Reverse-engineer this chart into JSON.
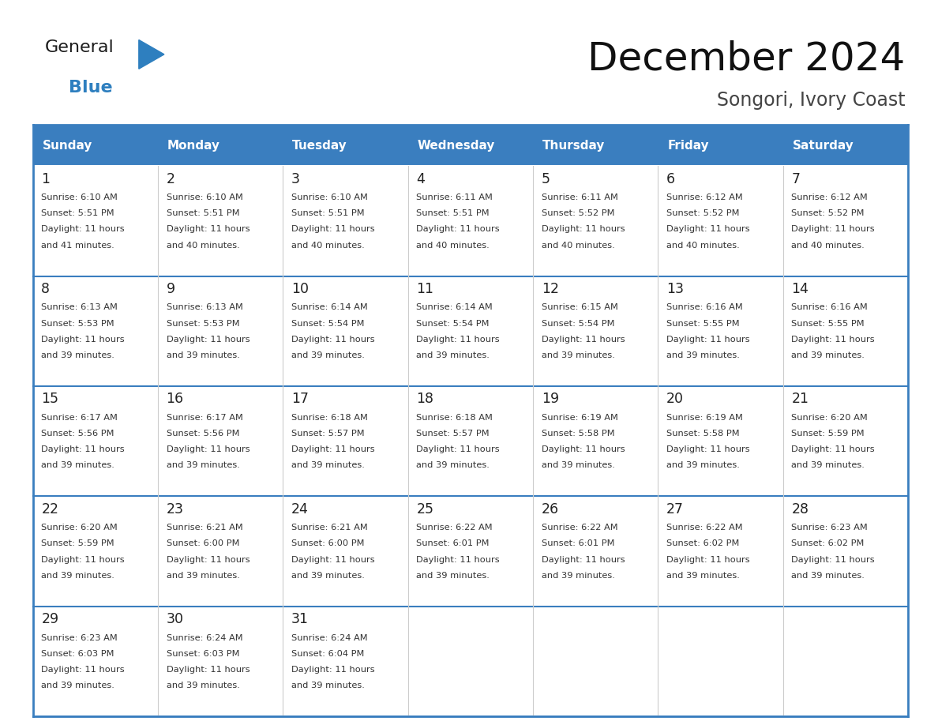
{
  "title": "December 2024",
  "subtitle": "Songori, Ivory Coast",
  "header_bg": "#3A7EBF",
  "header_text_color": "#FFFFFF",
  "days_of_week": [
    "Sunday",
    "Monday",
    "Tuesday",
    "Wednesday",
    "Thursday",
    "Friday",
    "Saturday"
  ],
  "border_color": "#3A7EBF",
  "cell_text_color": "#333333",
  "calendar": [
    [
      {
        "day": 1,
        "sunrise": "6:10 AM",
        "sunset": "5:51 PM",
        "daylight": "11 hours and 41 minutes."
      },
      {
        "day": 2,
        "sunrise": "6:10 AM",
        "sunset": "5:51 PM",
        "daylight": "11 hours and 40 minutes."
      },
      {
        "day": 3,
        "sunrise": "6:10 AM",
        "sunset": "5:51 PM",
        "daylight": "11 hours and 40 minutes."
      },
      {
        "day": 4,
        "sunrise": "6:11 AM",
        "sunset": "5:51 PM",
        "daylight": "11 hours and 40 minutes."
      },
      {
        "day": 5,
        "sunrise": "6:11 AM",
        "sunset": "5:52 PM",
        "daylight": "11 hours and 40 minutes."
      },
      {
        "day": 6,
        "sunrise": "6:12 AM",
        "sunset": "5:52 PM",
        "daylight": "11 hours and 40 minutes."
      },
      {
        "day": 7,
        "sunrise": "6:12 AM",
        "sunset": "5:52 PM",
        "daylight": "11 hours and 40 minutes."
      }
    ],
    [
      {
        "day": 8,
        "sunrise": "6:13 AM",
        "sunset": "5:53 PM",
        "daylight": "11 hours and 39 minutes."
      },
      {
        "day": 9,
        "sunrise": "6:13 AM",
        "sunset": "5:53 PM",
        "daylight": "11 hours and 39 minutes."
      },
      {
        "day": 10,
        "sunrise": "6:14 AM",
        "sunset": "5:54 PM",
        "daylight": "11 hours and 39 minutes."
      },
      {
        "day": 11,
        "sunrise": "6:14 AM",
        "sunset": "5:54 PM",
        "daylight": "11 hours and 39 minutes."
      },
      {
        "day": 12,
        "sunrise": "6:15 AM",
        "sunset": "5:54 PM",
        "daylight": "11 hours and 39 minutes."
      },
      {
        "day": 13,
        "sunrise": "6:16 AM",
        "sunset": "5:55 PM",
        "daylight": "11 hours and 39 minutes."
      },
      {
        "day": 14,
        "sunrise": "6:16 AM",
        "sunset": "5:55 PM",
        "daylight": "11 hours and 39 minutes."
      }
    ],
    [
      {
        "day": 15,
        "sunrise": "6:17 AM",
        "sunset": "5:56 PM",
        "daylight": "11 hours and 39 minutes."
      },
      {
        "day": 16,
        "sunrise": "6:17 AM",
        "sunset": "5:56 PM",
        "daylight": "11 hours and 39 minutes."
      },
      {
        "day": 17,
        "sunrise": "6:18 AM",
        "sunset": "5:57 PM",
        "daylight": "11 hours and 39 minutes."
      },
      {
        "day": 18,
        "sunrise": "6:18 AM",
        "sunset": "5:57 PM",
        "daylight": "11 hours and 39 minutes."
      },
      {
        "day": 19,
        "sunrise": "6:19 AM",
        "sunset": "5:58 PM",
        "daylight": "11 hours and 39 minutes."
      },
      {
        "day": 20,
        "sunrise": "6:19 AM",
        "sunset": "5:58 PM",
        "daylight": "11 hours and 39 minutes."
      },
      {
        "day": 21,
        "sunrise": "6:20 AM",
        "sunset": "5:59 PM",
        "daylight": "11 hours and 39 minutes."
      }
    ],
    [
      {
        "day": 22,
        "sunrise": "6:20 AM",
        "sunset": "5:59 PM",
        "daylight": "11 hours and 39 minutes."
      },
      {
        "day": 23,
        "sunrise": "6:21 AM",
        "sunset": "6:00 PM",
        "daylight": "11 hours and 39 minutes."
      },
      {
        "day": 24,
        "sunrise": "6:21 AM",
        "sunset": "6:00 PM",
        "daylight": "11 hours and 39 minutes."
      },
      {
        "day": 25,
        "sunrise": "6:22 AM",
        "sunset": "6:01 PM",
        "daylight": "11 hours and 39 minutes."
      },
      {
        "day": 26,
        "sunrise": "6:22 AM",
        "sunset": "6:01 PM",
        "daylight": "11 hours and 39 minutes."
      },
      {
        "day": 27,
        "sunrise": "6:22 AM",
        "sunset": "6:02 PM",
        "daylight": "11 hours and 39 minutes."
      },
      {
        "day": 28,
        "sunrise": "6:23 AM",
        "sunset": "6:02 PM",
        "daylight": "11 hours and 39 minutes."
      }
    ],
    [
      {
        "day": 29,
        "sunrise": "6:23 AM",
        "sunset": "6:03 PM",
        "daylight": "11 hours and 39 minutes."
      },
      {
        "day": 30,
        "sunrise": "6:24 AM",
        "sunset": "6:03 PM",
        "daylight": "11 hours and 39 minutes."
      },
      {
        "day": 31,
        "sunrise": "6:24 AM",
        "sunset": "6:04 PM",
        "daylight": "11 hours and 39 minutes."
      },
      null,
      null,
      null,
      null
    ]
  ],
  "logo_general_color": "#1a1a1a",
  "logo_blue_color": "#2E7FBF",
  "logo_triangle_color": "#2E7FBF"
}
